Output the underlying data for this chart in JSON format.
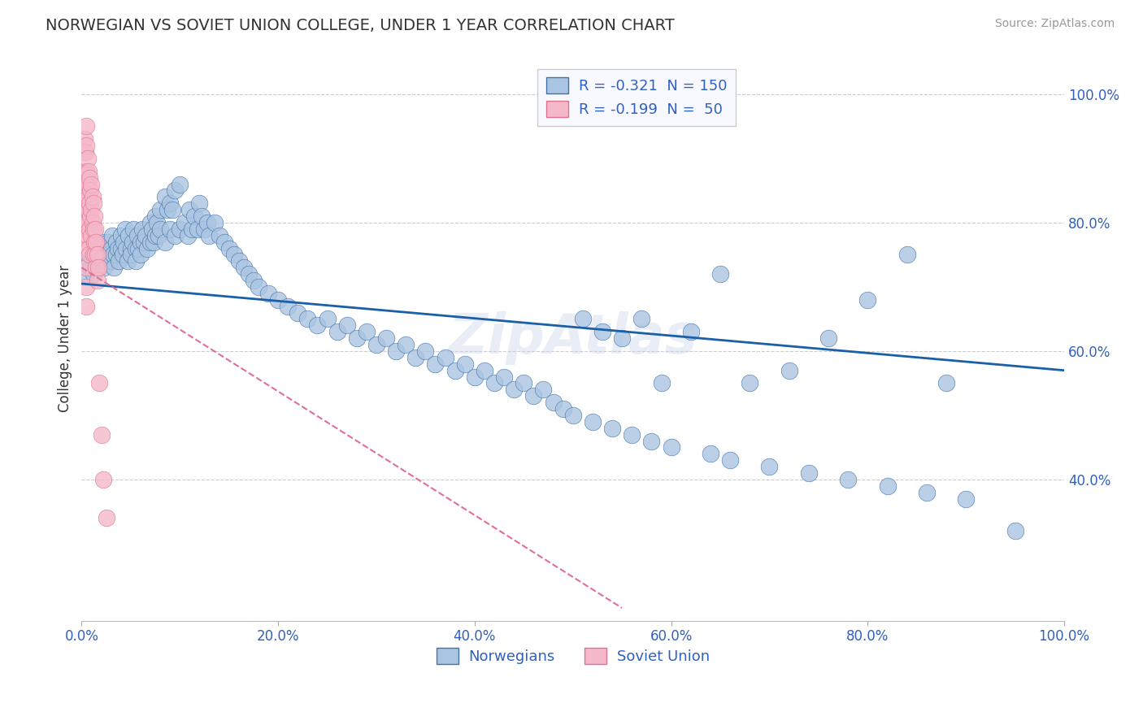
{
  "title": "NORWEGIAN VS SOVIET UNION COLLEGE, UNDER 1 YEAR CORRELATION CHART",
  "source": "Source: ZipAtlas.com",
  "ylabel": "College, Under 1 year",
  "x_tick_labels": [
    "0.0%",
    "20.0%",
    "40.0%",
    "60.0%",
    "80.0%",
    "100.0%"
  ],
  "y_tick_labels": [
    "40.0%",
    "60.0%",
    "80.0%",
    "100.0%"
  ],
  "xlim": [
    0.0,
    1.0
  ],
  "ylim": [
    0.18,
    1.06
  ],
  "blue_R": -0.321,
  "blue_N": 150,
  "pink_R": -0.199,
  "pink_N": 50,
  "blue_color": "#aac5e2",
  "blue_edge_color": "#4472a8",
  "blue_line_color": "#1a5fa8",
  "pink_color": "#f5b8c8",
  "pink_edge_color": "#e07090",
  "pink_line_color": "#e05878",
  "background_color": "#ffffff",
  "grid_color": "#cccccc",
  "title_color": "#333333",
  "legend_text_color": "#3060c0",
  "axis_label_color": "#3060c0",
  "watermark": "ZipAtlas",
  "legend_box_color": "#f8f9ff",
  "blue_trend_x": [
    0.0,
    1.0
  ],
  "blue_trend_y": [
    0.705,
    0.57
  ],
  "pink_trend_x": [
    0.0,
    0.55
  ],
  "pink_trend_y": [
    0.73,
    0.2
  ],
  "blue_scatter_x": [
    0.005,
    0.008,
    0.01,
    0.01,
    0.012,
    0.013,
    0.015,
    0.015,
    0.017,
    0.018,
    0.02,
    0.02,
    0.021,
    0.022,
    0.023,
    0.025,
    0.025,
    0.027,
    0.028,
    0.03,
    0.03,
    0.031,
    0.032,
    0.033,
    0.035,
    0.035,
    0.037,
    0.038,
    0.04,
    0.04,
    0.042,
    0.043,
    0.044,
    0.045,
    0.047,
    0.048,
    0.05,
    0.05,
    0.052,
    0.053,
    0.055,
    0.055,
    0.057,
    0.058,
    0.06,
    0.06,
    0.062,
    0.063,
    0.065,
    0.067,
    0.07,
    0.07,
    0.072,
    0.073,
    0.075,
    0.075,
    0.077,
    0.078,
    0.08,
    0.08,
    0.085,
    0.085,
    0.087,
    0.09,
    0.09,
    0.092,
    0.095,
    0.095,
    0.1,
    0.1,
    0.105,
    0.108,
    0.11,
    0.112,
    0.115,
    0.118,
    0.12,
    0.122,
    0.125,
    0.128,
    0.13,
    0.135,
    0.14,
    0.145,
    0.15,
    0.155,
    0.16,
    0.165,
    0.17,
    0.175,
    0.18,
    0.19,
    0.2,
    0.21,
    0.22,
    0.23,
    0.24,
    0.25,
    0.26,
    0.27,
    0.28,
    0.29,
    0.3,
    0.31,
    0.32,
    0.33,
    0.34,
    0.35,
    0.36,
    0.37,
    0.38,
    0.39,
    0.4,
    0.41,
    0.42,
    0.43,
    0.44,
    0.45,
    0.46,
    0.47,
    0.48,
    0.49,
    0.5,
    0.51,
    0.52,
    0.53,
    0.54,
    0.55,
    0.56,
    0.57,
    0.58,
    0.59,
    0.6,
    0.62,
    0.64,
    0.65,
    0.66,
    0.68,
    0.7,
    0.72,
    0.74,
    0.76,
    0.78,
    0.8,
    0.82,
    0.84,
    0.86,
    0.88,
    0.9,
    0.95
  ],
  "blue_scatter_y": [
    0.72,
    0.74,
    0.73,
    0.75,
    0.72,
    0.74,
    0.73,
    0.76,
    0.74,
    0.75,
    0.76,
    0.74,
    0.77,
    0.75,
    0.73,
    0.76,
    0.74,
    0.77,
    0.75,
    0.76,
    0.74,
    0.78,
    0.75,
    0.73,
    0.77,
    0.75,
    0.76,
    0.74,
    0.78,
    0.76,
    0.75,
    0.77,
    0.79,
    0.76,
    0.74,
    0.78,
    0.76,
    0.75,
    0.77,
    0.79,
    0.76,
    0.74,
    0.78,
    0.76,
    0.77,
    0.75,
    0.79,
    0.77,
    0.78,
    0.76,
    0.8,
    0.77,
    0.79,
    0.77,
    0.81,
    0.78,
    0.8,
    0.78,
    0.82,
    0.79,
    0.84,
    0.77,
    0.82,
    0.83,
    0.79,
    0.82,
    0.85,
    0.78,
    0.86,
    0.79,
    0.8,
    0.78,
    0.82,
    0.79,
    0.81,
    0.79,
    0.83,
    0.81,
    0.79,
    0.8,
    0.78,
    0.8,
    0.78,
    0.77,
    0.76,
    0.75,
    0.74,
    0.73,
    0.72,
    0.71,
    0.7,
    0.69,
    0.68,
    0.67,
    0.66,
    0.65,
    0.64,
    0.65,
    0.63,
    0.64,
    0.62,
    0.63,
    0.61,
    0.62,
    0.6,
    0.61,
    0.59,
    0.6,
    0.58,
    0.59,
    0.57,
    0.58,
    0.56,
    0.57,
    0.55,
    0.56,
    0.54,
    0.55,
    0.53,
    0.54,
    0.52,
    0.51,
    0.5,
    0.65,
    0.49,
    0.63,
    0.48,
    0.62,
    0.47,
    0.65,
    0.46,
    0.55,
    0.45,
    0.63,
    0.44,
    0.72,
    0.43,
    0.55,
    0.42,
    0.57,
    0.41,
    0.62,
    0.4,
    0.68,
    0.39,
    0.75,
    0.38,
    0.55,
    0.37,
    0.32
  ],
  "pink_scatter_x": [
    0.003,
    0.003,
    0.004,
    0.004,
    0.004,
    0.005,
    0.005,
    0.005,
    0.005,
    0.005,
    0.005,
    0.005,
    0.005,
    0.005,
    0.005,
    0.006,
    0.006,
    0.006,
    0.006,
    0.007,
    0.007,
    0.007,
    0.007,
    0.008,
    0.008,
    0.008,
    0.008,
    0.009,
    0.009,
    0.01,
    0.01,
    0.01,
    0.011,
    0.011,
    0.012,
    0.012,
    0.012,
    0.013,
    0.013,
    0.014,
    0.014,
    0.015,
    0.015,
    0.016,
    0.016,
    0.017,
    0.018,
    0.02,
    0.022,
    0.025
  ],
  "pink_scatter_y": [
    0.93,
    0.88,
    0.91,
    0.85,
    0.82,
    0.95,
    0.92,
    0.88,
    0.85,
    0.82,
    0.79,
    0.76,
    0.73,
    0.7,
    0.67,
    0.9,
    0.86,
    0.82,
    0.78,
    0.88,
    0.84,
    0.8,
    0.76,
    0.87,
    0.83,
    0.79,
    0.75,
    0.85,
    0.81,
    0.86,
    0.82,
    0.78,
    0.84,
    0.8,
    0.83,
    0.79,
    0.75,
    0.81,
    0.77,
    0.79,
    0.75,
    0.77,
    0.73,
    0.75,
    0.71,
    0.73,
    0.55,
    0.47,
    0.4,
    0.34
  ],
  "legend_labels": [
    "Norwegians",
    "Soviet Union"
  ],
  "figsize": [
    14.06,
    8.92
  ],
  "dpi": 100
}
